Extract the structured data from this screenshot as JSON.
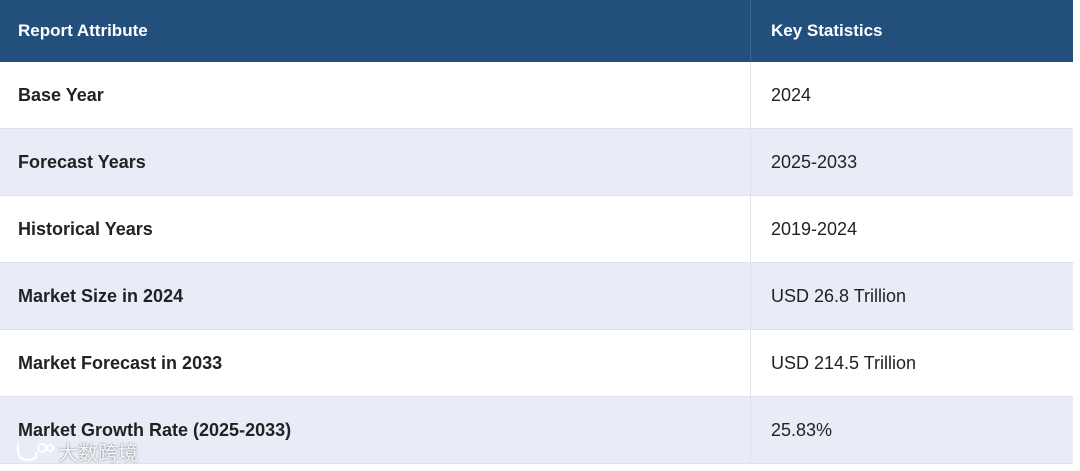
{
  "table": {
    "header": [
      "Report Attribute",
      "Key Statistics"
    ],
    "rows": [
      [
        "Base Year",
        "2024"
      ],
      [
        "Forecast Years",
        "2025-2033"
      ],
      [
        "Historical Years",
        "2019-2024"
      ],
      [
        "Market Size in 2024",
        "USD 26.8 Trillion"
      ],
      [
        "Market Forecast in 2033",
        "USD 214.5 Trillion"
      ],
      [
        "Market Growth Rate (2025-2033)",
        "25.83%"
      ]
    ]
  },
  "watermark": "大数跨境"
}
